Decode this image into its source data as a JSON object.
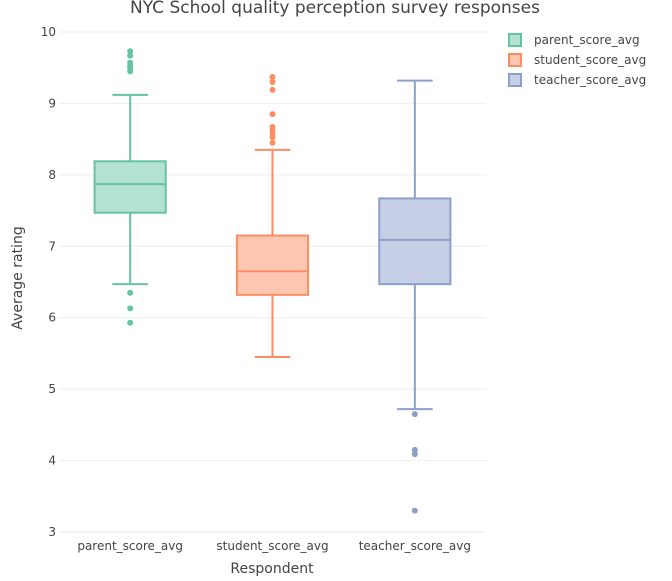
{
  "chart_data": {
    "type": "box",
    "title": "NYC School quality perception survey responses",
    "xlabel": "Respondent",
    "ylabel": "Average rating",
    "ylim": [
      3,
      10
    ],
    "yticks": [
      3,
      4,
      5,
      6,
      7,
      8,
      9,
      10
    ],
    "grid": true,
    "legend_position": "top-right",
    "categories": [
      "parent_score_avg",
      "student_score_avg",
      "teacher_score_avg"
    ],
    "series": [
      {
        "name": "parent_score_avg",
        "color": "#66c2a5",
        "fill": "#b3e1d2",
        "whisker_low": 6.47,
        "q1": 7.47,
        "median": 7.87,
        "q3": 8.19,
        "whisker_high": 9.12,
        "outliers": [
          9.73,
          9.67,
          9.57,
          9.53,
          9.5,
          9.45,
          6.35,
          6.13,
          5.93
        ]
      },
      {
        "name": "student_score_avg",
        "color": "#fc8d62",
        "fill": "#fdc6b0",
        "whisker_low": 5.45,
        "q1": 6.32,
        "median": 6.65,
        "q3": 7.15,
        "whisker_high": 8.35,
        "outliers": [
          9.37,
          9.3,
          9.19,
          8.85,
          8.67,
          8.63,
          8.58,
          8.53,
          8.45
        ]
      },
      {
        "name": "teacher_score_avg",
        "color": "#8da0cb",
        "fill": "#c6cfe5",
        "whisker_low": 4.72,
        "q1": 6.47,
        "median": 7.09,
        "q3": 7.67,
        "whisker_high": 9.32,
        "outliers": [
          4.65,
          4.15,
          4.09,
          3.3
        ]
      }
    ]
  }
}
